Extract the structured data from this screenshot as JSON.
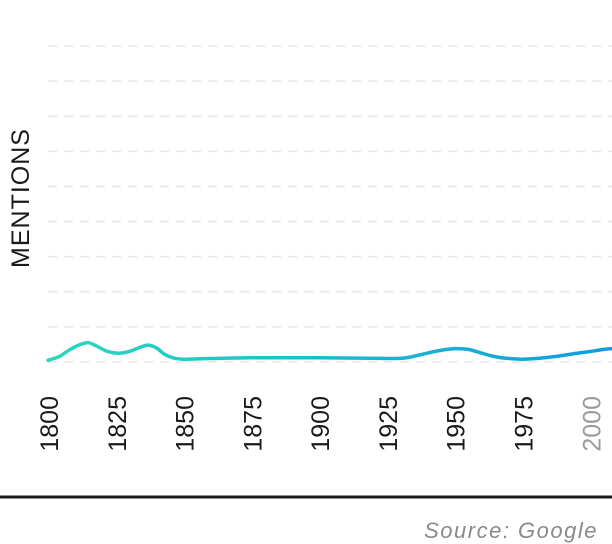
{
  "chart_data": {
    "type": "line",
    "ylabel": "MENTIONS",
    "xlabel": "",
    "xlim": [
      1800,
      2008
    ],
    "ylim": [
      0,
      9
    ],
    "x_ticks": [
      "1800",
      "1825",
      "1850",
      "1875",
      "1900",
      "1925",
      "1950",
      "1975",
      "2000"
    ],
    "grid": true,
    "series": [
      {
        "x": [
          1800,
          1804,
          1808,
          1812,
          1815,
          1818,
          1822,
          1826,
          1830,
          1834,
          1837,
          1840,
          1843,
          1846,
          1850,
          1860,
          1875,
          1900,
          1925,
          1932,
          1938,
          1944,
          1950,
          1955,
          1960,
          1965,
          1970,
          1975,
          1980,
          1985,
          1990,
          1995,
          2000,
          2005,
          2008
        ],
        "y": [
          0.05,
          0.15,
          0.35,
          0.5,
          0.55,
          0.45,
          0.3,
          0.25,
          0.3,
          0.42,
          0.48,
          0.4,
          0.22,
          0.12,
          0.08,
          0.1,
          0.12,
          0.12,
          0.1,
          0.12,
          0.22,
          0.32,
          0.38,
          0.36,
          0.25,
          0.15,
          0.1,
          0.08,
          0.1,
          0.14,
          0.19,
          0.25,
          0.3,
          0.36,
          0.38
        ],
        "color_start": "#2ad8bc",
        "color_end": "#0f9de0"
      }
    ]
  },
  "source": "Source: Google"
}
